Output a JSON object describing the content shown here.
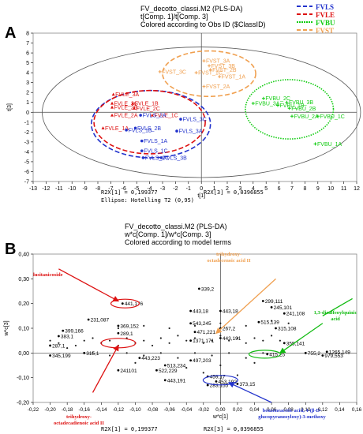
{
  "chart_data": [
    {
      "type": "scatter",
      "panel_label": "A",
      "title": "FV_decotto_classi.M2 (PLS-DA)",
      "subtitle": "t[Comp. 1]/t[Comp. 3]",
      "subtitle2": "Colored according to Obs ID ($ClassID)",
      "xlabel": "t[1]",
      "ylabel": "t[3]",
      "xlim": [
        -13,
        12
      ],
      "ylim": [
        -7,
        8
      ],
      "xticks": [
        -13,
        -12,
        -11,
        -10,
        -9,
        -8,
        -7,
        -6,
        -5,
        -4,
        -3,
        -2,
        -1,
        0,
        1,
        2,
        3,
        4,
        5,
        6,
        7,
        8,
        9,
        10,
        11,
        12
      ],
      "yticks": [
        -7,
        -6,
        -5,
        -4,
        -3,
        -2,
        -1,
        0,
        1,
        2,
        3,
        4,
        5,
        6,
        7,
        8
      ],
      "legend": [
        {
          "name": "FVLS",
          "color": "#2233cc"
        },
        {
          "name": "FVLE",
          "color": "#dd1111"
        },
        {
          "name": "FVBU",
          "color": "#11cc11"
        },
        {
          "name": "FVST",
          "color": "#f0a050"
        }
      ],
      "ellipse": {
        "cx": 0,
        "cy": 0,
        "rx": 12.3,
        "ry": 6.6
      },
      "class_ellipses": [
        {
          "color": "#2233cc",
          "cx": -3.9,
          "cy": -1.2,
          "rx": 4.6,
          "ry": 3.4
        },
        {
          "color": "#dd1111",
          "cx": -4.0,
          "cy": -1.0,
          "rx": 4.3,
          "ry": 3.2
        },
        {
          "color": "#11cc11",
          "cx": 6.8,
          "cy": 0.3,
          "rx": 3.4,
          "ry": 3.0
        },
        {
          "color": "#f0a050",
          "cx": 0.6,
          "cy": 3.9,
          "rx": 3.6,
          "ry": 2.3
        }
      ],
      "points": [
        {
          "label": "FVST_3A",
          "x": 0.2,
          "y": 5.2,
          "c": 3
        },
        {
          "label": "FVST_3B",
          "x": 0.6,
          "y": 4.7,
          "c": 3
        },
        {
          "label": "FVST_2B",
          "x": 0.7,
          "y": 4.3,
          "c": 3
        },
        {
          "label": "FVST_3C",
          "x": -3.2,
          "y": 4.1,
          "c": 3
        },
        {
          "label": "FVST_1C",
          "x": -0.4,
          "y": 4.0,
          "c": 3
        },
        {
          "label": "FVST_1A",
          "x": 1.4,
          "y": 3.6,
          "c": 3
        },
        {
          "label": "FVST_2A",
          "x": 0.2,
          "y": 2.6,
          "c": 3
        },
        {
          "label": "FVLE_3A",
          "x": -6.8,
          "y": 1.8,
          "c": 1
        },
        {
          "label": "FVLE_1B",
          "x": -5.3,
          "y": 0.9,
          "c": 1
        },
        {
          "label": "FVLE_3C",
          "x": -6.9,
          "y": 0.9,
          "c": 1
        },
        {
          "label": "FVLE_2C",
          "x": -5.2,
          "y": 0.4,
          "c": 1
        },
        {
          "label": "FVLE_2B",
          "x": -6.9,
          "y": 0.5,
          "c": 1
        },
        {
          "label": "FVLE_1C",
          "x": -3.8,
          "y": -0.3,
          "c": 1
        },
        {
          "label": "FVLE_2A",
          "x": -6.9,
          "y": -0.3,
          "c": 1
        },
        {
          "label": "FVLE_1A",
          "x": -7.6,
          "y": -1.6,
          "c": 1
        },
        {
          "label": "FVLS_2A",
          "x": -4.7,
          "y": -0.3,
          "c": 0
        },
        {
          "label": "FVLS_3C",
          "x": -1.6,
          "y": -0.7,
          "c": 0
        },
        {
          "label": "FVLS_2B",
          "x": -5.1,
          "y": -1.6,
          "c": 0
        },
        {
          "label": "FVLS_1B",
          "x": -5.8,
          "y": -1.8,
          "c": 0
        },
        {
          "label": "FVLS_3A",
          "x": -1.9,
          "y": -1.9,
          "c": 0
        },
        {
          "label": "FVLS_1A",
          "x": -4.6,
          "y": -2.9,
          "c": 0
        },
        {
          "label": "FVLS_1C",
          "x": -4.6,
          "y": -3.9,
          "c": 0
        },
        {
          "label": "FVLS_2C",
          "x": -4.5,
          "y": -4.6,
          "c": 0
        },
        {
          "label": "FVLS_3B",
          "x": -3.1,
          "y": -4.6,
          "c": 0
        },
        {
          "label": "FVBU_2C",
          "x": 4.8,
          "y": 1.4,
          "c": 2
        },
        {
          "label": "FVBU_3B",
          "x": 6.6,
          "y": 1.0,
          "c": 2
        },
        {
          "label": "FVBU_3A",
          "x": 4.0,
          "y": 0.9,
          "c": 2
        },
        {
          "label": "FVBU_1B",
          "x": 5.9,
          "y": 0.7,
          "c": 2
        },
        {
          "label": "FVBU_2B",
          "x": 6.8,
          "y": 0.4,
          "c": 2
        },
        {
          "label": "FVBU_2A",
          "x": 7.0,
          "y": -0.4,
          "c": 2
        },
        {
          "label": "FVBU_1C",
          "x": 9.0,
          "y": -0.4,
          "c": 2
        },
        {
          "label": "FVBU_1A",
          "x": 8.8,
          "y": -3.2,
          "c": 2
        }
      ],
      "footer": [
        "R2X[1] = 0,199377",
        "R2X[3] = 0,0396855",
        "Ellipse: Hotelling T2 (0,95)"
      ]
    },
    {
      "type": "scatter",
      "panel_label": "B",
      "title": "FV_decotto_classi.M2 (PLS-DA)",
      "subtitle": "w*c[Comp. 1]/w*c[Comp. 3]",
      "subtitle2": "Colored according to model terms",
      "xlabel": "w*c[1]",
      "ylabel": "w*c[3]",
      "xlim": [
        -0.22,
        0.16
      ],
      "ylim": [
        -0.2,
        0.4
      ],
      "xticks": [
        -0.22,
        -0.2,
        -0.18,
        -0.16,
        -0.14,
        -0.12,
        -0.1,
        -0.08,
        -0.06,
        -0.04,
        -0.02,
        0,
        0.02,
        0.04,
        0.06,
        0.08,
        0.1,
        0.12,
        0.14,
        0.16
      ],
      "yticks": [
        -0.2,
        -0.1,
        0,
        0.1,
        0.2,
        0.3,
        0.4
      ],
      "xtick_labels": [
        "-0,22",
        "-0,20",
        "-0,18",
        "-0,16",
        "-0,14",
        "-0,12",
        "-0,10",
        "-0,08",
        "-0,06",
        "-0,04",
        "-0,02",
        "0,00",
        "0,02",
        "0,04",
        "0,06",
        "0,08",
        "0,10",
        "0,12",
        "0,14",
        "0,16"
      ],
      "ytick_labels": [
        "-0,20",
        "-0,10",
        "0,00",
        "0,10",
        "0,20",
        "0,30",
        "0,40"
      ],
      "points": [
        {
          "label": "339,2",
          "x": -0.025,
          "y": 0.26
        },
        {
          "label": "299,111",
          "x": 0.05,
          "y": 0.21
        },
        {
          "label": "441,176",
          "x": -0.115,
          "y": 0.2
        },
        {
          "label": "245,101",
          "x": 0.06,
          "y": 0.185
        },
        {
          "label": "241,108",
          "x": 0.075,
          "y": 0.16
        },
        {
          "label": "515,139",
          "x": 0.045,
          "y": 0.125
        },
        {
          "label": "231,087",
          "x": -0.155,
          "y": 0.135
        },
        {
          "label": "399,166",
          "x": -0.185,
          "y": 0.09
        },
        {
          "label": "369,152",
          "x": -0.12,
          "y": 0.11
        },
        {
          "label": "543,245",
          "x": -0.035,
          "y": 0.12
        },
        {
          "label": "383,1",
          "x": -0.19,
          "y": 0.068
        },
        {
          "label": "315,108",
          "x": 0.065,
          "y": 0.1
        },
        {
          "label": "471,221",
          "x": -0.03,
          "y": 0.085
        },
        {
          "label": "289,1",
          "x": -0.12,
          "y": 0.08
        },
        {
          "label": "287,1",
          "x": -0.2,
          "y": 0.03
        },
        {
          "label": "443,191",
          "x": 0.0,
          "y": 0.06
        },
        {
          "label": "315,1",
          "x": -0.16,
          "y": 0.0
        },
        {
          "label": "415,25",
          "x": 0.055,
          "y": -0.005
        },
        {
          "label": "755,2",
          "x": 0.1,
          "y": 0.0
        },
        {
          "label": "1265,149",
          "x": 0.125,
          "y": 0.005
        },
        {
          "label": "979,553",
          "x": 0.12,
          "y": -0.01
        },
        {
          "label": "355,141",
          "x": 0.075,
          "y": 0.04
        },
        {
          "label": "345,199",
          "x": -0.2,
          "y": -0.01
        },
        {
          "label": "443,223",
          "x": -0.095,
          "y": -0.02
        },
        {
          "label": "497,203",
          "x": -0.035,
          "y": -0.03
        },
        {
          "label": "513,234",
          "x": -0.065,
          "y": -0.05
        },
        {
          "label": "241101",
          "x": -0.12,
          "y": -0.07
        },
        {
          "label": "522,229",
          "x": -0.075,
          "y": -0.07
        },
        {
          "label": "443,191",
          "x": -0.065,
          "y": -0.11
        },
        {
          "label": "459,17",
          "x": -0.015,
          "y": -0.095
        },
        {
          "label": "453,192",
          "x": -0.005,
          "y": -0.115
        },
        {
          "label": "283,155",
          "x": -0.015,
          "y": -0.13
        },
        {
          "label": "373,15",
          "x": 0.02,
          "y": -0.125
        },
        {
          "label": "1371,171",
          "x": -0.035,
          "y": 0.05
        },
        {
          "label": "443,18",
          "x": -0.035,
          "y": 0.17
        },
        {
          "label": "443,18",
          "x": 0.0,
          "y": 0.17
        },
        {
          "label": "267,2",
          "x": 0.0,
          "y": 0.1
        }
      ],
      "annotations": [
        {
          "text": "lusitanicoside",
          "color": "#dd1111",
          "x": -0.2,
          "y": 0.36
        },
        {
          "text": "trihydroxy-octadecenoic acid II",
          "color": "#f0a050",
          "x": 0.07,
          "y": 0.34
        },
        {
          "text": "1,3-dicaffeoylquinic acid",
          "color": "#11bb11",
          "x": 0.135,
          "y": 0.15
        },
        {
          "text": "trihydroxy-octadecadienoic acid II",
          "color": "#dd1111",
          "x": -0.19,
          "y": -0.21
        },
        {
          "text": "benzeneacetic acid, 4-(β-D-glucopyranosyloxy)-3-methoxy",
          "color": "#2233cc",
          "x": 0.08,
          "y": -0.24
        }
      ],
      "footer": [
        "R2X[1] = 0,199377",
        "R2X[3] = 0,0396855"
      ]
    }
  ]
}
